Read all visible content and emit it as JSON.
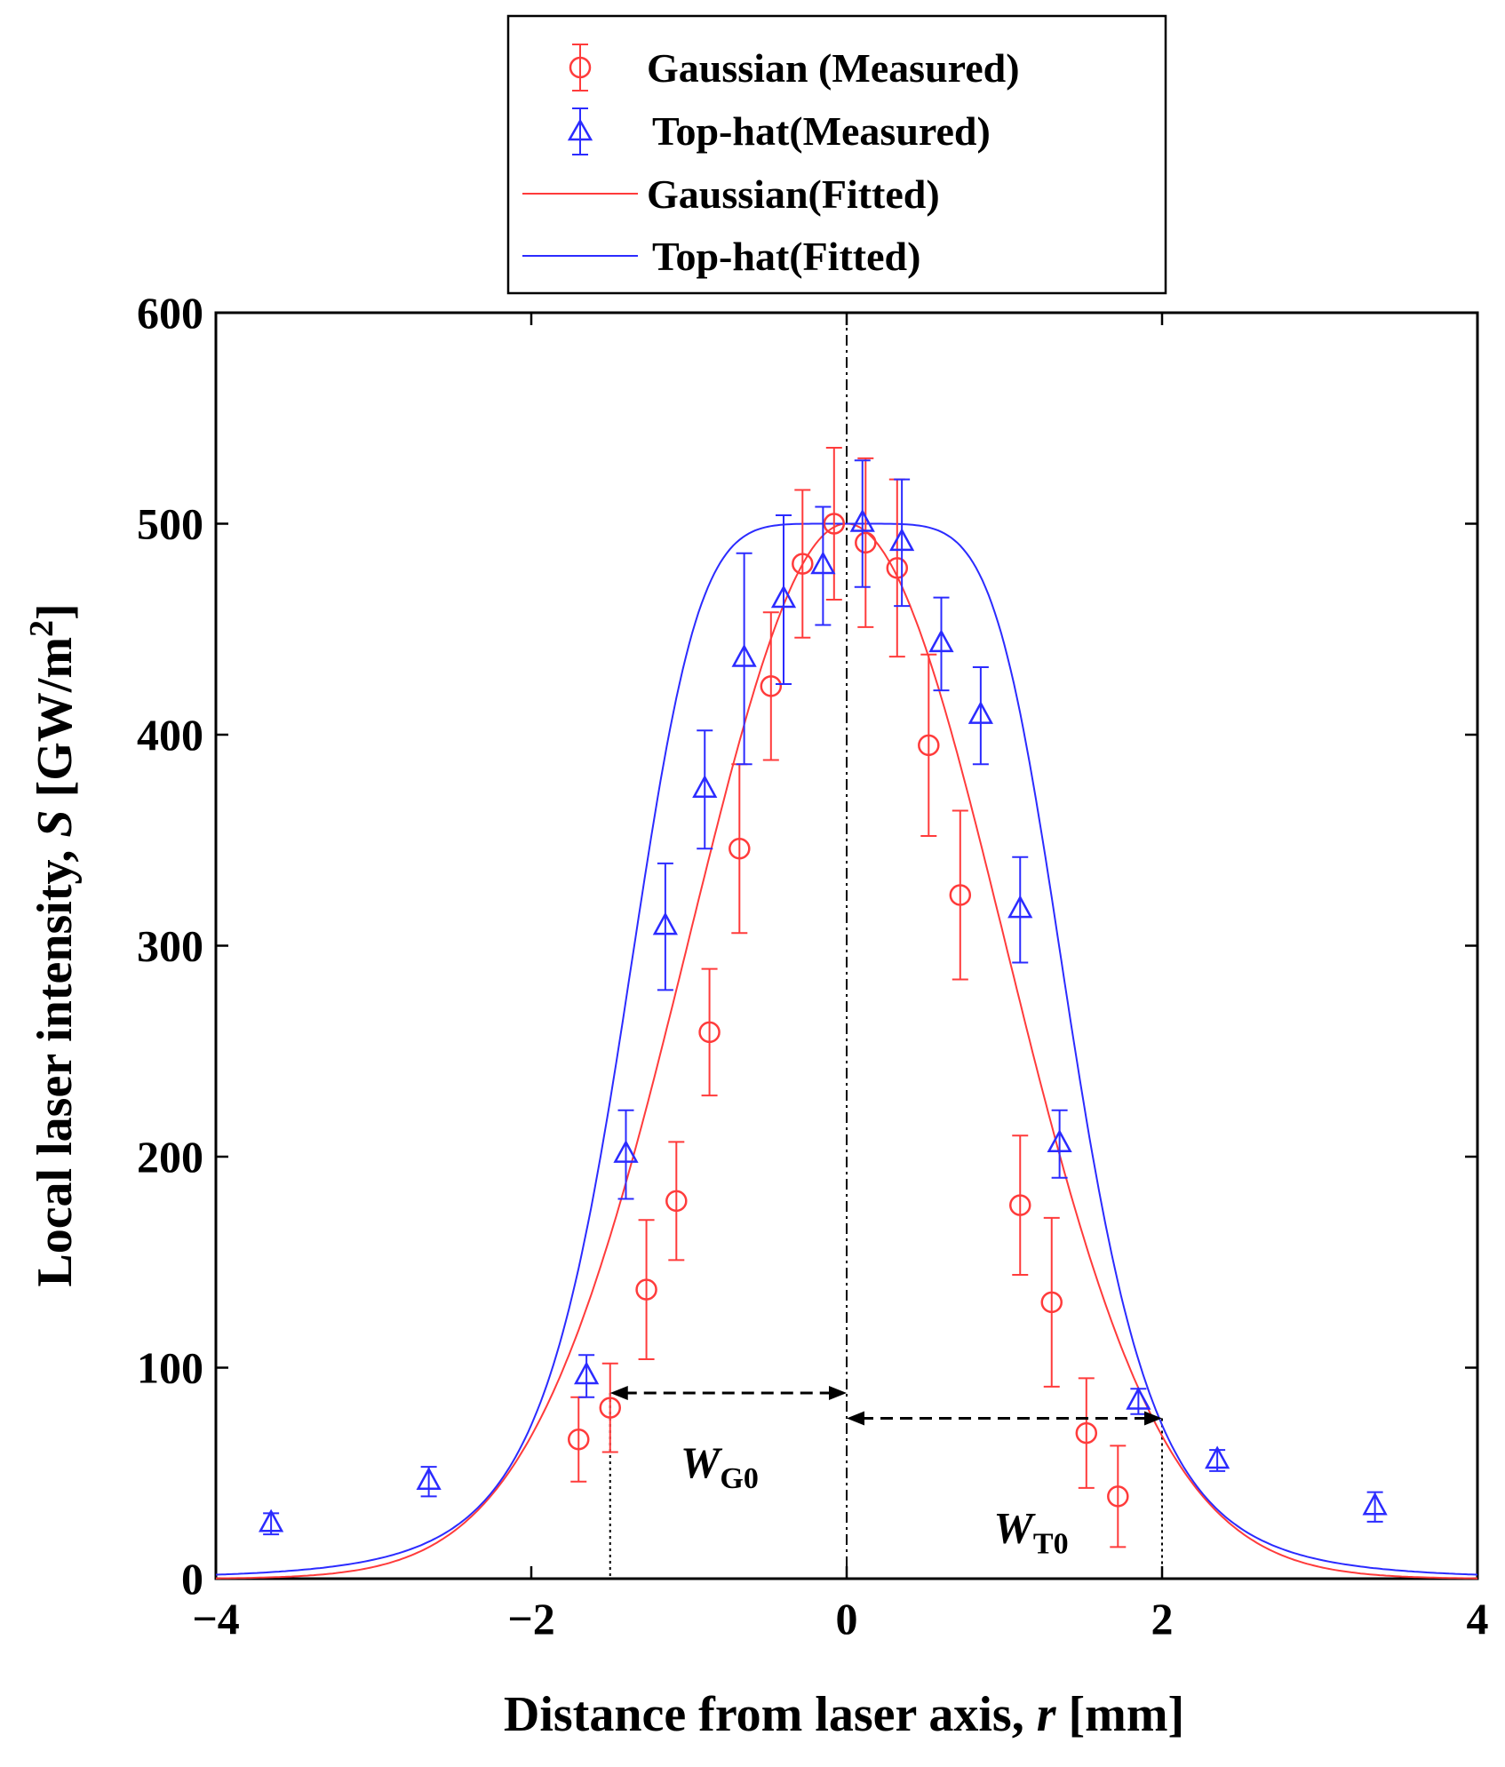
{
  "chart_data": {
    "type": "scatter",
    "xlabel": "Distance from laser axis,",
    "xlabel_symbol": "r",
    "xlabel_unit": "[mm]",
    "ylabel": "Local laser intensity,",
    "ylabel_symbol": "S",
    "ylabel_unit": "[GW/m",
    "ylabel_unit_sup": "2",
    "ylabel_unit_end": "]",
    "xlim": [
      -4,
      4
    ],
    "ylim": [
      0,
      600
    ],
    "xticks": [
      -4,
      -2,
      0,
      2,
      4
    ],
    "xtick_labels": [
      "−4",
      "−2",
      "0",
      "2",
      "4"
    ],
    "yticks": [
      0,
      100,
      200,
      300,
      400,
      500,
      600
    ],
    "ytick_labels": [
      "0",
      "100",
      "200",
      "300",
      "400",
      "500",
      "600"
    ],
    "legend_position": "top-center",
    "legend": [
      {
        "label": "Gaussian (Measured)",
        "kind": "marker-circle-errorbar",
        "color": "#ff3b3b"
      },
      {
        "label": "Top-hat(Measured)",
        "kind": "marker-triangle-errorbar",
        "color": "#2b2bff"
      },
      {
        "label": "Gaussian(Fitted)",
        "kind": "line",
        "color": "#ff3b3b"
      },
      {
        "label": "Top-hat(Fitted)",
        "kind": "line",
        "color": "#2b2bff"
      }
    ],
    "series": [
      {
        "name": "Gaussian (Measured)",
        "color": "#ff3b3b",
        "marker": "circle",
        "x": [
          -1.7,
          -1.5,
          -1.27,
          -1.08,
          -0.87,
          -0.68,
          -0.48,
          -0.28,
          -0.08,
          0.12,
          0.32,
          0.52,
          0.72,
          1.1,
          1.3,
          1.52,
          1.72
        ],
        "y": [
          66,
          81,
          137,
          179,
          259,
          346,
          423,
          481,
          500,
          491,
          479,
          395,
          324,
          177,
          131,
          69,
          39
        ],
        "err": [
          20,
          21,
          33,
          28,
          30,
          40,
          35,
          35,
          36,
          40,
          42,
          43,
          40,
          33,
          40,
          26,
          24
        ]
      },
      {
        "name": "Top-hat(Measured)",
        "color": "#2b2bff",
        "marker": "triangle",
        "x": [
          -3.65,
          -2.65,
          -1.65,
          -1.4,
          -1.15,
          -0.9,
          -0.65,
          -0.4,
          -0.15,
          0.1,
          0.35,
          0.6,
          0.85,
          1.1,
          1.35,
          1.85,
          2.35,
          3.35
        ],
        "y": [
          26,
          46,
          96,
          201,
          309,
          374,
          436,
          464,
          480,
          500,
          491,
          443,
          409,
          317,
          206,
          84,
          56,
          34
        ],
        "err": [
          5,
          7,
          10,
          21,
          30,
          28,
          50,
          40,
          28,
          30,
          30,
          22,
          23,
          25,
          16,
          6,
          5,
          7
        ]
      },
      {
        "name": "Gaussian(Fitted)",
        "color": "#ff3b3b",
        "kind": "line",
        "function": "gaussian",
        "peak": 500,
        "half_width_1e2": 2.0
      },
      {
        "name": "Top-hat(Fitted)",
        "color": "#2b2bff",
        "kind": "line",
        "function": "flat-top",
        "peak": 500,
        "half_width": 1.45,
        "order": 5.5
      }
    ],
    "annotations": [
      {
        "label": "W",
        "sub": "G0",
        "from_x": -1.5,
        "to_x": 0,
        "y": 88
      },
      {
        "label": "W",
        "sub": "T0",
        "from_x": 0,
        "to_x": 2.0,
        "y": 76
      }
    ]
  }
}
